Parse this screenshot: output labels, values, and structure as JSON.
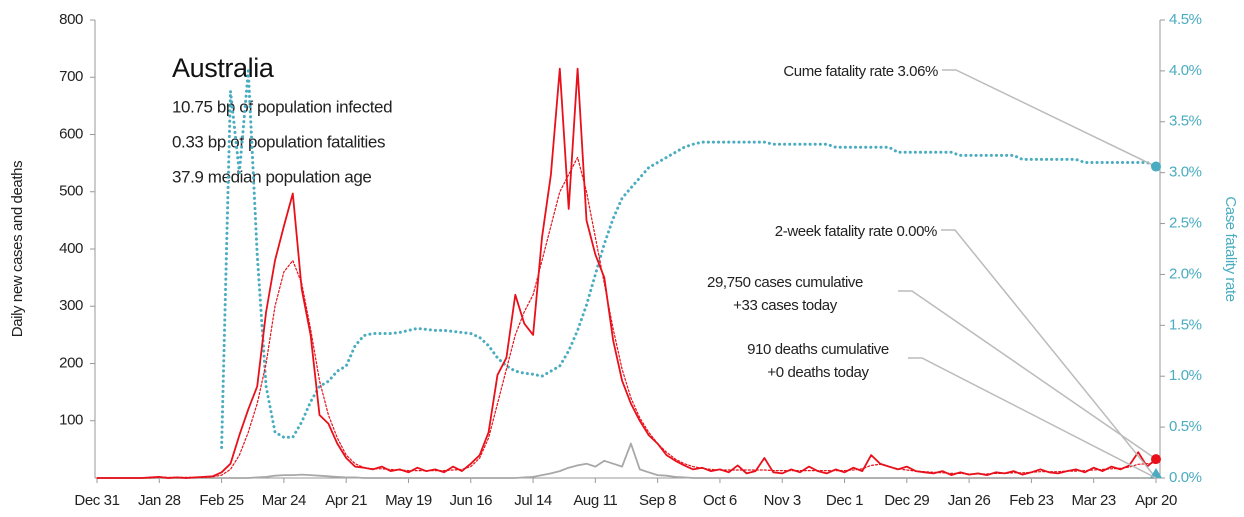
{
  "chart_data": {
    "type": "line",
    "title": "Australia",
    "info": [
      "10.75 bp of population infected",
      "0.33 bp of population fatalities",
      "37.9 median population age"
    ],
    "ylabel": "Daily new cases and deaths",
    "y2label": "Case fatality rate",
    "x": [
      0,
      4,
      8,
      12,
      16,
      20,
      24,
      28,
      32,
      36,
      40,
      44,
      48,
      52,
      56,
      60,
      64,
      68,
      72,
      76,
      80,
      84,
      88,
      92,
      96,
      100,
      104,
      108,
      112,
      116,
      120,
      124,
      128,
      132,
      136,
      140,
      144,
      148,
      152,
      156,
      160,
      164,
      168,
      172,
      176,
      180,
      184,
      188,
      192,
      196,
      200,
      204,
      208,
      212,
      216,
      220,
      224,
      228,
      232,
      236,
      240,
      244,
      248,
      252,
      256,
      260,
      264,
      268,
      272,
      276,
      280,
      284,
      288,
      292,
      296,
      300,
      304,
      308,
      312,
      316,
      320,
      324,
      328,
      332,
      336,
      340,
      344,
      348,
      352,
      356,
      360,
      364,
      368,
      372,
      376,
      380,
      384,
      388,
      392,
      396,
      400,
      404,
      408,
      412,
      416,
      420,
      424,
      428,
      432,
      436,
      440,
      444,
      448,
      452,
      456,
      460,
      464,
      468,
      472,
      476
    ],
    "xlim": [
      0,
      476
    ],
    "xticks": [
      {
        "value": 0,
        "label": "Dec 31"
      },
      {
        "value": 28,
        "label": "Jan 28"
      },
      {
        "value": 56,
        "label": "Feb 25"
      },
      {
        "value": 84,
        "label": "Mar 24"
      },
      {
        "value": 112,
        "label": "Apr 21"
      },
      {
        "value": 140,
        "label": "May 19"
      },
      {
        "value": 168,
        "label": "Jun 16"
      },
      {
        "value": 196,
        "label": "Jul 14"
      },
      {
        "value": 224,
        "label": "Aug 11"
      },
      {
        "value": 252,
        "label": "Sep 8"
      },
      {
        "value": 280,
        "label": "Oct 6"
      },
      {
        "value": 308,
        "label": "Nov 3"
      },
      {
        "value": 336,
        "label": "Dec 1"
      },
      {
        "value": 364,
        "label": "Dec 29"
      },
      {
        "value": 392,
        "label": "Jan 26"
      },
      {
        "value": 420,
        "label": "Feb 23"
      },
      {
        "value": 448,
        "label": "Mar 23"
      },
      {
        "value": 476,
        "label": "Apr 20"
      }
    ],
    "ylim": [
      0,
      800
    ],
    "yticks": [
      100,
      200,
      300,
      400,
      500,
      600,
      700,
      800
    ],
    "y2lim": [
      0,
      4.5
    ],
    "y2ticks": [
      {
        "value": 0,
        "label": "0.0%"
      },
      {
        "value": 0.5,
        "label": "0.5%"
      },
      {
        "value": 1,
        "label": "1.0%"
      },
      {
        "value": 1.5,
        "label": "1.5%"
      },
      {
        "value": 2,
        "label": "2.0%"
      },
      {
        "value": 2.5,
        "label": "2.5%"
      },
      {
        "value": 3,
        "label": "3.0%"
      },
      {
        "value": 3.5,
        "label": "3.5%"
      },
      {
        "value": 4,
        "label": "4.0%"
      },
      {
        "value": 4.5,
        "label": "4.5%"
      }
    ],
    "grid": false,
    "series": [
      {
        "color": "#e8101a",
        "style": "solid",
        "axis": "y",
        "values": [
          0,
          0,
          0,
          0,
          0,
          0,
          1,
          2,
          0,
          1,
          0,
          1,
          2,
          3,
          10,
          25,
          75,
          120,
          160,
          290,
          380,
          440,
          497,
          330,
          250,
          110,
          95,
          60,
          35,
          20,
          18,
          15,
          20,
          12,
          15,
          10,
          18,
          12,
          15,
          10,
          20,
          12,
          25,
          40,
          80,
          180,
          210,
          320,
          270,
          250,
          420,
          530,
          715,
          470,
          715,
          450,
          390,
          350,
          240,
          170,
          130,
          100,
          75,
          60,
          40,
          30,
          22,
          15,
          18,
          12,
          15,
          10,
          22,
          8,
          12,
          35,
          10,
          8,
          15,
          10,
          20,
          12,
          8,
          15,
          10,
          18,
          12,
          40,
          25,
          20,
          15,
          20,
          12,
          10,
          8,
          12,
          5,
          10,
          6,
          8,
          5,
          10,
          8,
          12,
          6,
          10,
          15,
          10,
          8,
          12,
          15,
          10,
          18,
          12,
          20,
          15,
          22,
          45,
          20,
          33
        ]
      },
      {
        "color": "#e8101a",
        "style": "dotted",
        "axis": "y",
        "values": [
          0,
          0,
          0,
          0,
          0,
          0,
          0,
          1,
          1,
          1,
          1,
          1,
          1,
          2,
          5,
          15,
          40,
          80,
          130,
          200,
          300,
          360,
          380,
          340,
          260,
          170,
          110,
          70,
          40,
          25,
          18,
          16,
          16,
          15,
          14,
          13,
          13,
          13,
          13,
          13,
          14,
          15,
          20,
          35,
          70,
          130,
          190,
          250,
          290,
          320,
          380,
          440,
          500,
          530,
          560,
          500,
          420,
          340,
          260,
          190,
          140,
          105,
          80,
          60,
          45,
          33,
          25,
          20,
          17,
          15,
          14,
          14,
          14,
          14,
          14,
          14,
          13,
          13,
          13,
          13,
          13,
          13,
          13,
          13,
          13,
          14,
          16,
          22,
          24,
          20,
          16,
          14,
          12,
          11,
          10,
          9,
          8,
          8,
          7,
          7,
          7,
          8,
          8,
          9,
          9,
          10,
          11,
          11,
          11,
          12,
          12,
          13,
          14,
          15,
          16,
          17,
          19,
          24,
          25,
          26
        ]
      },
      {
        "color": "#a8a8a8",
        "style": "solid",
        "axis": "y",
        "values": [
          0,
          0,
          0,
          0,
          0,
          0,
          0,
          0,
          0,
          0,
          0,
          0,
          0,
          0,
          0,
          0,
          0,
          0,
          1,
          2,
          4,
          5,
          5,
          6,
          5,
          4,
          3,
          2,
          1,
          1,
          0,
          0,
          0,
          0,
          0,
          0,
          0,
          0,
          0,
          0,
          0,
          0,
          0,
          0,
          0,
          0,
          0,
          0,
          1,
          2,
          5,
          8,
          12,
          18,
          22,
          25,
          20,
          30,
          25,
          20,
          60,
          15,
          10,
          5,
          4,
          2,
          1,
          0,
          0,
          0,
          0,
          0,
          0,
          0,
          0,
          0,
          0,
          0,
          0,
          0,
          0,
          0,
          0,
          0,
          0,
          0,
          0,
          0,
          0,
          0,
          0,
          0,
          0,
          0,
          0,
          0,
          0,
          0,
          0,
          0,
          0,
          0,
          0,
          0,
          0,
          0,
          0,
          0,
          0,
          0,
          0,
          0,
          0,
          0,
          0,
          0,
          0,
          0,
          0,
          0
        ]
      },
      {
        "color": "#4aacc0",
        "style": "dotted",
        "axis": "y2",
        "values": [
          null,
          null,
          null,
          null,
          null,
          null,
          null,
          null,
          null,
          null,
          null,
          null,
          null,
          null,
          0.3,
          3.8,
          3.0,
          4.0,
          2.2,
          0.9,
          0.45,
          0.4,
          0.4,
          0.55,
          0.75,
          0.9,
          0.95,
          1.05,
          1.1,
          1.3,
          1.4,
          1.42,
          1.42,
          1.42,
          1.43,
          1.45,
          1.47,
          1.46,
          1.45,
          1.45,
          1.44,
          1.43,
          1.42,
          1.38,
          1.3,
          1.18,
          1.1,
          1.05,
          1.03,
          1.02,
          1.0,
          1.05,
          1.1,
          1.25,
          1.45,
          1.7,
          2.0,
          2.3,
          2.55,
          2.75,
          2.85,
          2.95,
          3.05,
          3.1,
          3.15,
          3.2,
          3.25,
          3.28,
          3.3,
          3.3,
          3.3,
          3.3,
          3.3,
          3.3,
          3.3,
          3.3,
          3.28,
          3.28,
          3.28,
          3.28,
          3.28,
          3.28,
          3.28,
          3.25,
          3.25,
          3.25,
          3.25,
          3.25,
          3.25,
          3.25,
          3.2,
          3.2,
          3.2,
          3.2,
          3.2,
          3.2,
          3.2,
          3.17,
          3.17,
          3.17,
          3.17,
          3.17,
          3.17,
          3.17,
          3.13,
          3.13,
          3.13,
          3.13,
          3.13,
          3.13,
          3.13,
          3.1,
          3.1,
          3.1,
          3.1,
          3.1,
          3.1,
          3.1,
          3.1,
          3.06
        ]
      }
    ],
    "annotations": [
      {
        "lines": [
          "Cume fatality rate 3.06%"
        ],
        "value": 3.06,
        "axis": "y2",
        "marker": "circle",
        "color": "#4aacc0"
      },
      {
        "lines": [
          "2-week fatality rate 0.00%"
        ],
        "value": 0,
        "axis": "y2",
        "marker": "triangle",
        "color": "#4aacc0"
      },
      {
        "lines": [
          "29,750 cases cumulative",
          "+33 cases today"
        ],
        "value": 33,
        "axis": "y",
        "marker": "circle",
        "color": "#e8101a"
      },
      {
        "lines": [
          "910 deaths cumulative",
          "+0 deaths today"
        ],
        "value": 0,
        "axis": "y",
        "marker": "none",
        "color": "#a8a8a8"
      }
    ]
  }
}
